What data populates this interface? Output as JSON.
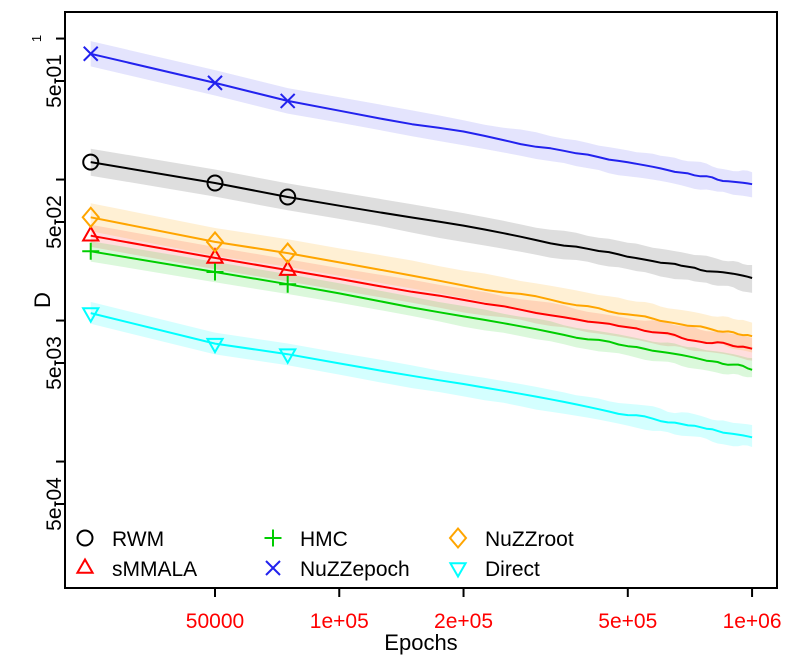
{
  "chart_data": {
    "type": "line",
    "scale": "log-log",
    "grid": false,
    "x_axis": {
      "label": "Epochs",
      "tick_color": "#FF0000",
      "range": [
        22000,
        1160000
      ],
      "ticks": [
        {
          "value": 50000,
          "label": "50000"
        },
        {
          "value": 100000,
          "label": "1e+05"
        },
        {
          "value": 200000,
          "label": "2e+05"
        },
        {
          "value": 500000,
          "label": "5e+05"
        },
        {
          "value": 1000000,
          "label": "1e+06"
        }
      ]
    },
    "y_axis": {
      "label": "D",
      "tick_color": "#000000",
      "range": [
        0.000125,
        1.55
      ],
      "ticks": [
        {
          "value": 1,
          "label": "1",
          "small": true
        },
        {
          "value": 0.5,
          "label": "5e-01"
        },
        {
          "value": 0.1
        },
        {
          "value": 0.05,
          "label": "5e-02"
        },
        {
          "value": 0.01
        },
        {
          "value": 0.005,
          "label": "5e-03"
        },
        {
          "value": 0.001
        },
        {
          "value": 0.0005,
          "label": "5e-04"
        }
      ]
    },
    "legend": {
      "position": "bottom-left-inside",
      "columns": 3,
      "rows": 2
    },
    "marker_epochs": [
      25000,
      50000,
      75000
    ],
    "series": [
      {
        "name": "RWM",
        "color": "#000000",
        "marker": "circle",
        "band_color": "rgba(0,0,0,0.13)",
        "band_halfwidth_log10": 0.095,
        "anchors": [
          [
            25000,
            0.133
          ],
          [
            50000,
            0.0945
          ],
          [
            75000,
            0.0752
          ],
          [
            1000000,
            0.02
          ]
        ]
      },
      {
        "name": "sMMALA",
        "color": "#FF0000",
        "marker": "triangle-up",
        "band_color": "rgba(255,0,0,0.13)",
        "band_halfwidth_log10": 0.078,
        "anchors": [
          [
            25000,
            0.04
          ],
          [
            50000,
            0.0278
          ],
          [
            75000,
            0.0228
          ],
          [
            1000000,
            0.0063
          ]
        ]
      },
      {
        "name": "HMC",
        "color": "#00CD00",
        "marker": "plus",
        "band_color": "rgba(0,205,0,0.14)",
        "band_halfwidth_log10": 0.071,
        "anchors": [
          [
            25000,
            0.031
          ],
          [
            50000,
            0.0221
          ],
          [
            75000,
            0.0181
          ],
          [
            1000000,
            0.0046
          ]
        ]
      },
      {
        "name": "NuZZepoch",
        "color": "#2222EE",
        "marker": "x",
        "band_color": "rgba(34,34,238,0.12)",
        "band_halfwidth_log10": 0.09,
        "anchors": [
          [
            25000,
            0.78
          ],
          [
            50000,
            0.485
          ],
          [
            75000,
            0.361
          ],
          [
            1000000,
            0.091
          ]
        ]
      },
      {
        "name": "NuZZroot",
        "color": "#FFA500",
        "marker": "diamond",
        "band_color": "rgba(255,165,0,0.17)",
        "band_halfwidth_log10": 0.1,
        "anchors": [
          [
            25000,
            0.054
          ],
          [
            50000,
            0.0361
          ],
          [
            75000,
            0.0301
          ],
          [
            1000000,
            0.0077
          ]
        ]
      },
      {
        "name": "Direct",
        "color": "#00FFFF",
        "marker": "triangle-down",
        "band_color": "rgba(0,255,255,0.17)",
        "band_halfwidth_log10": 0.078,
        "anchors": [
          [
            25000,
            0.0113
          ],
          [
            50000,
            0.00686
          ],
          [
            75000,
            0.00577
          ],
          [
            1000000,
            0.0015
          ]
        ]
      }
    ]
  }
}
